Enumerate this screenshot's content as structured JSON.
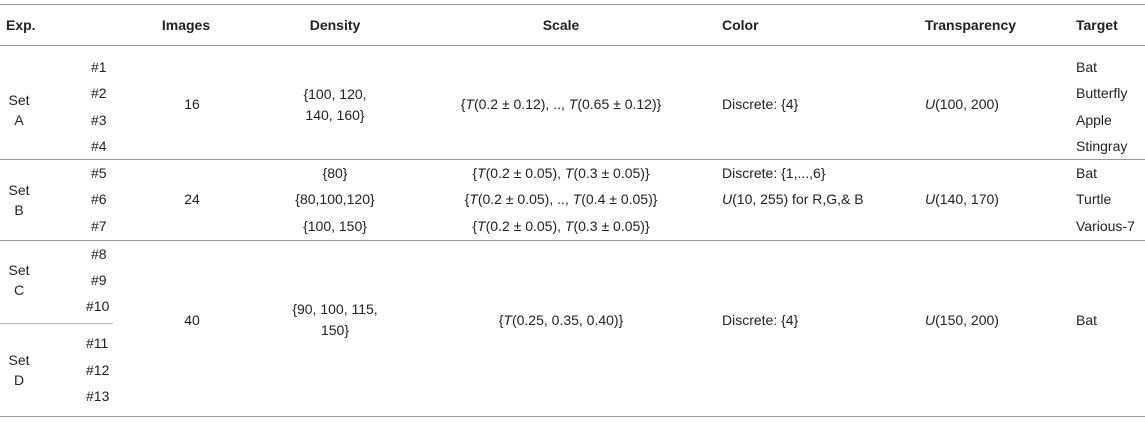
{
  "headers": {
    "exp": "Exp.",
    "images": "Images",
    "density": "Density",
    "scale": "Scale",
    "color": "Color",
    "transparency": "Transparency",
    "target": "Target"
  },
  "setA": {
    "label1": "Set",
    "label2": "A",
    "ids": [
      "#1",
      "#2",
      "#3",
      "#4"
    ],
    "images": "16",
    "density1": "{100, 120,",
    "density2": "140, 160}",
    "scale": {
      "a": "{",
      "b": "T",
      "c": "(0.2 ± 0.12), .., ",
      "d": "T",
      "e": "(0.65 ± 0.12)}"
    },
    "color": "Discrete: {4}",
    "transparency": {
      "fn": "U",
      "val": "(100, 200)"
    },
    "targets": [
      "Bat",
      "Butterfly",
      "Apple",
      "Stingray"
    ]
  },
  "setB": {
    "label1": "Set",
    "label2": "B",
    "ids": [
      "#5",
      "#6",
      "#7"
    ],
    "images": "24",
    "density": [
      "{80}",
      "{80,100,120}",
      "{100, 150}"
    ],
    "scale": [
      {
        "a": "{",
        "b": "T",
        "c": "(0.2 ± 0.05), ",
        "d": "T",
        "e": "(0.3 ± 0.05)}"
      },
      {
        "a": "{",
        "b": "T",
        "c": "(0.2 ± 0.05), .., ",
        "d": "T",
        "e": "(0.4 ± 0.05)}"
      },
      {
        "a": "{",
        "b": "T",
        "c": "(0.2 ± 0.05), ",
        "d": "T",
        "e": "(0.3 ± 0.05)}"
      }
    ],
    "color1": "Discrete: {1,...,6}",
    "color2": {
      "fn": "U",
      "val": "(10, 255) for R,G,& B"
    },
    "transparency": {
      "fn": "U",
      "val": "(140, 170)"
    },
    "targets": [
      "Bat",
      "Turtle",
      "Various-7"
    ]
  },
  "setCD": {
    "c_label1": "Set",
    "c_label2": "C",
    "d_label1": "Set",
    "d_label2": "D",
    "ids": [
      "#8",
      "#9",
      "#10",
      "#11",
      "#12",
      "#13"
    ],
    "images": "40",
    "density1": "{90, 100, 115,",
    "density2": "150}",
    "scale": {
      "a": "{",
      "b": "T",
      "c": "(0.25, 0.35, 0.40)}"
    },
    "color": "Discrete: {4}",
    "transparency": {
      "fn": "U",
      "val": "(150, 200)"
    },
    "target": "Bat"
  }
}
